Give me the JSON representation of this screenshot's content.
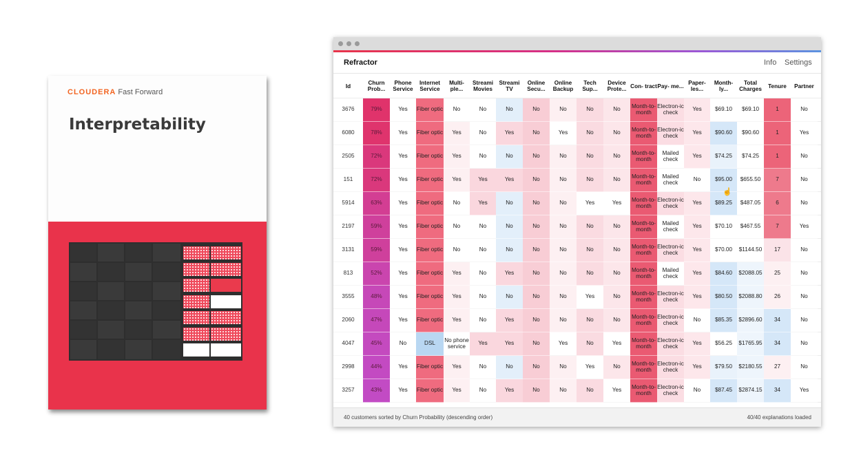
{
  "book": {
    "brand_name": "CLOUDERA",
    "brand_sub": "Fast Forward",
    "title": "Interpretability"
  },
  "app": {
    "title": "Refractor",
    "nav": [
      "Info",
      "Settings"
    ]
  },
  "table": {
    "columns": [
      {
        "key": "id",
        "label": "Id"
      },
      {
        "key": "churn",
        "label": "Churn Prob..."
      },
      {
        "key": "phone",
        "label": "Phone Service"
      },
      {
        "key": "internet",
        "label": "Internet Service"
      },
      {
        "key": "multiple",
        "label": "Multi- ple..."
      },
      {
        "key": "movies",
        "label": "Streami Movies"
      },
      {
        "key": "tv",
        "label": "Streami TV"
      },
      {
        "key": "security",
        "label": "Online Secu..."
      },
      {
        "key": "backup",
        "label": "Online Backup"
      },
      {
        "key": "tech",
        "label": "Tech Sup..."
      },
      {
        "key": "device",
        "label": "Device Prote..."
      },
      {
        "key": "contract",
        "label": "Con- tract"
      },
      {
        "key": "payment",
        "label": "Pay- me..."
      },
      {
        "key": "paperless",
        "label": "Paper- les..."
      },
      {
        "key": "monthly",
        "label": "Month- ly..."
      },
      {
        "key": "total",
        "label": "Total Charges"
      },
      {
        "key": "tenure",
        "label": "Tenure"
      },
      {
        "key": "partner",
        "label": "Partner"
      }
    ],
    "rows": [
      [
        "3676",
        "79%",
        "Yes",
        "Fiber optic",
        "No",
        "No",
        "No",
        "No",
        "No",
        "No",
        "No",
        "Month-to-month",
        "Electron-ic check",
        "Yes",
        "$69.10",
        "$69.10",
        "1",
        "No"
      ],
      [
        "6080",
        "78%",
        "Yes",
        "Fiber optic",
        "Yes",
        "No",
        "Yes",
        "No",
        "Yes",
        "No",
        "No",
        "Month-to-month",
        "Electron-ic check",
        "Yes",
        "$90.60",
        "$90.60",
        "1",
        "Yes"
      ],
      [
        "2505",
        "72%",
        "Yes",
        "Fiber optic",
        "Yes",
        "No",
        "No",
        "No",
        "No",
        "No",
        "No",
        "Month-to-month",
        "Mailed check",
        "Yes",
        "$74.25",
        "$74.25",
        "1",
        "No"
      ],
      [
        "151",
        "72%",
        "Yes",
        "Fiber optic",
        "Yes",
        "Yes",
        "Yes",
        "No",
        "No",
        "No",
        "No",
        "Month-to-month",
        "Mailed check",
        "No",
        "$95.00",
        "$655.50",
        "7",
        "No"
      ],
      [
        "5914",
        "63%",
        "Yes",
        "Fiber optic",
        "No",
        "Yes",
        "No",
        "No",
        "No",
        "Yes",
        "Yes",
        "Month-to-month",
        "Electron-ic check",
        "Yes",
        "$89.25",
        "$487.05",
        "6",
        "No"
      ],
      [
        "2197",
        "59%",
        "Yes",
        "Fiber optic",
        "No",
        "No",
        "No",
        "No",
        "No",
        "No",
        "No",
        "Month-to-month",
        "Mailed check",
        "Yes",
        "$70.10",
        "$467.55",
        "7",
        "Yes"
      ],
      [
        "3131",
        "59%",
        "Yes",
        "Fiber optic",
        "No",
        "No",
        "No",
        "No",
        "No",
        "No",
        "No",
        "Month-to-month",
        "Electron-ic check",
        "Yes",
        "$70.00",
        "$1144.50",
        "17",
        "No"
      ],
      [
        "813",
        "52%",
        "Yes",
        "Fiber optic",
        "Yes",
        "No",
        "Yes",
        "No",
        "No",
        "No",
        "No",
        "Month-to-month",
        "Mailed check",
        "Yes",
        "$84.60",
        "$2088.05",
        "25",
        "No"
      ],
      [
        "3555",
        "48%",
        "Yes",
        "Fiber optic",
        "Yes",
        "No",
        "No",
        "No",
        "No",
        "Yes",
        "No",
        "Month-to-month",
        "Electron-ic check",
        "Yes",
        "$80.50",
        "$2088.80",
        "26",
        "No"
      ],
      [
        "2060",
        "47%",
        "Yes",
        "Fiber optic",
        "Yes",
        "No",
        "Yes",
        "No",
        "No",
        "No",
        "No",
        "Month-to-month",
        "Electron-ic check",
        "No",
        "$85.35",
        "$2896.60",
        "34",
        "No"
      ],
      [
        "4047",
        "45%",
        "No",
        "DSL",
        "No phone service",
        "Yes",
        "Yes",
        "No",
        "Yes",
        "No",
        "Yes",
        "Month-to-month",
        "Electron-ic check",
        "Yes",
        "$56.25",
        "$1765.95",
        "34",
        "No"
      ],
      [
        "2998",
        "44%",
        "Yes",
        "Fiber optic",
        "Yes",
        "No",
        "No",
        "No",
        "No",
        "Yes",
        "No",
        "Month-to-month",
        "Electron-ic check",
        "Yes",
        "$79.50",
        "$2180.55",
        "27",
        "No"
      ],
      [
        "3257",
        "43%",
        "Yes",
        "Fiber optic",
        "Yes",
        "No",
        "Yes",
        "No",
        "No",
        "No",
        "Yes",
        "Month-to-month",
        "Electron-ic check",
        "No",
        "$87.45",
        "$2874.15",
        "34",
        "Yes"
      ]
    ]
  },
  "footer": {
    "left": "40 customers sorted by Churn Probability (descending order)",
    "right": "40/40 explanations loaded"
  },
  "colors": {
    "accent_gradient": [
      "#e8344a",
      "#d62f87",
      "#9b57d6",
      "#5b93e0"
    ],
    "churn_high": "#e0336b",
    "churn_low": "#c24bc4",
    "risk_red": "#ef6b7f",
    "risk_pink": "#f8cdd5",
    "safe_blue": "#d5e7f8",
    "book_red": "#e9334b"
  }
}
